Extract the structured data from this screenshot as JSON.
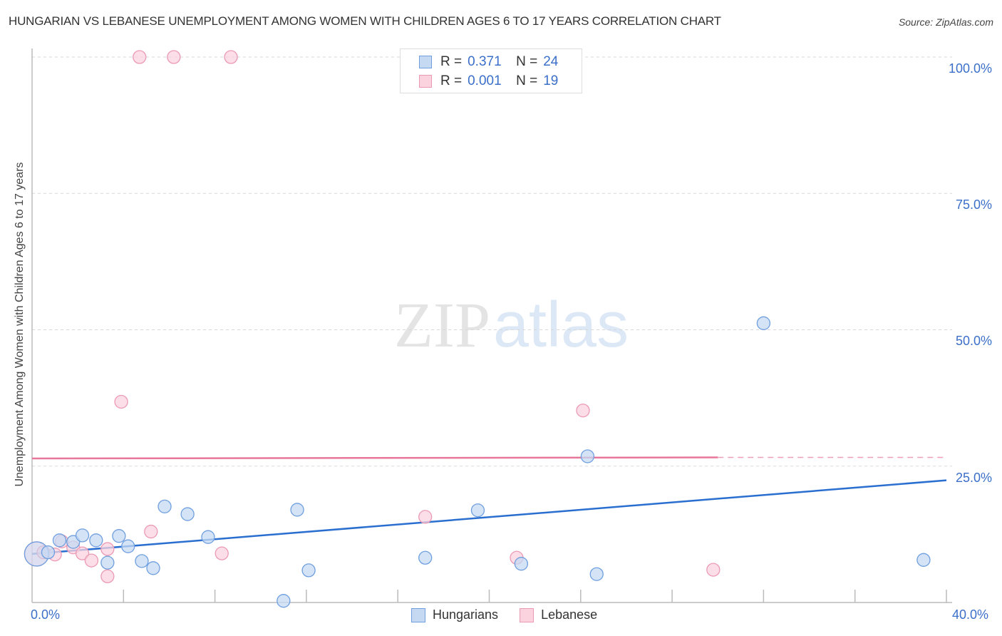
{
  "header": {
    "title": "HUNGARIAN VS LEBANESE UNEMPLOYMENT AMONG WOMEN WITH CHILDREN AGES 6 TO 17 YEARS CORRELATION CHART",
    "source": "Source: ZipAtlas.com"
  },
  "watermark": {
    "zip": "ZIP",
    "atlas": "atlas"
  },
  "legend": {
    "rows": [
      {
        "r_label": "R =",
        "r_value": "0.371",
        "n_label": "N =",
        "n_value": "24",
        "color": "#a9c8f0"
      },
      {
        "r_label": "R =",
        "r_value": "0.001",
        "n_label": "N =",
        "n_value": "19",
        "color": "#f6b8cb"
      }
    ]
  },
  "bottom_legend": [
    {
      "label": "Hungarians",
      "color": "#a9c8f0"
    },
    {
      "label": "Lebanese",
      "color": "#f6b8cb"
    }
  ],
  "axes": {
    "ylabel": "Unemployment Among Women with Children Ages 6 to 17 years",
    "y_ticks": [
      "100.0%",
      "75.0%",
      "50.0%",
      "25.0%"
    ],
    "x_ticks": [
      "0.0%",
      "40.0%"
    ]
  },
  "colors": {
    "blue_fill": "#c5d9f3",
    "blue_stroke": "#6f9fdf",
    "blue_line": "#2a6fd0",
    "pink_fill": "#fad3df",
    "pink_stroke": "#ec9ab3",
    "pink_line": "#e8789b",
    "tick_text": "#3b6fc9"
  },
  "chart_data": {
    "type": "scatter",
    "title": "HUNGARIAN VS LEBANESE UNEMPLOYMENT AMONG WOMEN WITH CHILDREN AGES 6 TO 17 YEARS CORRELATION CHART",
    "xlabel": "",
    "ylabel": "Unemployment Among Women with Children Ages 6 to 17 years",
    "xlim": [
      0,
      40
    ],
    "ylim": [
      0,
      100
    ],
    "x_tick_labels": [
      "0.0%",
      "40.0%"
    ],
    "y_tick_labels": [
      "25.0%",
      "50.0%",
      "75.0%",
      "100.0%"
    ],
    "grid": "horizontal dashed",
    "legend_position": "top center + bottom",
    "series": [
      {
        "name": "Hungarians",
        "R": 0.371,
        "N": 24,
        "points": [
          {
            "x": 0.2,
            "y": 8.9,
            "large": true
          },
          {
            "x": 0.7,
            "y": 9.2
          },
          {
            "x": 1.2,
            "y": 11.4
          },
          {
            "x": 1.8,
            "y": 11.1
          },
          {
            "x": 2.2,
            "y": 12.3
          },
          {
            "x": 2.8,
            "y": 11.4
          },
          {
            "x": 3.3,
            "y": 7.3
          },
          {
            "x": 3.8,
            "y": 12.2
          },
          {
            "x": 4.2,
            "y": 10.3
          },
          {
            "x": 4.8,
            "y": 7.6
          },
          {
            "x": 5.3,
            "y": 6.3
          },
          {
            "x": 5.8,
            "y": 17.6
          },
          {
            "x": 6.8,
            "y": 16.2
          },
          {
            "x": 7.7,
            "y": 12.0
          },
          {
            "x": 11.0,
            "y": 0.3
          },
          {
            "x": 11.6,
            "y": 17.0
          },
          {
            "x": 12.1,
            "y": 5.9
          },
          {
            "x": 17.2,
            "y": 8.2
          },
          {
            "x": 19.5,
            "y": 16.9
          },
          {
            "x": 21.4,
            "y": 7.1
          },
          {
            "x": 24.3,
            "y": 26.8
          },
          {
            "x": 24.7,
            "y": 5.2
          },
          {
            "x": 32.0,
            "y": 51.2
          },
          {
            "x": 39.0,
            "y": 7.8
          }
        ],
        "trendline": {
          "x": [
            0,
            40
          ],
          "y": [
            8.9,
            22.4
          ]
        }
      },
      {
        "name": "Lebanese",
        "R": 0.001,
        "N": 19,
        "points": [
          {
            "x": 0.2,
            "y": 8.9,
            "large": true
          },
          {
            "x": 0.5,
            "y": 9.2
          },
          {
            "x": 1.0,
            "y": 8.8
          },
          {
            "x": 1.3,
            "y": 11.2
          },
          {
            "x": 1.8,
            "y": 10.1
          },
          {
            "x": 2.2,
            "y": 9.0
          },
          {
            "x": 2.6,
            "y": 7.7
          },
          {
            "x": 3.3,
            "y": 9.8
          },
          {
            "x": 3.3,
            "y": 4.8
          },
          {
            "x": 3.9,
            "y": 36.8
          },
          {
            "x": 4.7,
            "y": 100.0
          },
          {
            "x": 5.2,
            "y": 13.0
          },
          {
            "x": 6.2,
            "y": 100.0
          },
          {
            "x": 8.3,
            "y": 9.0
          },
          {
            "x": 8.7,
            "y": 100.0
          },
          {
            "x": 17.2,
            "y": 15.7
          },
          {
            "x": 21.2,
            "y": 8.2
          },
          {
            "x": 24.1,
            "y": 35.2
          },
          {
            "x": 29.8,
            "y": 6.0
          }
        ],
        "trendline": {
          "x": [
            0,
            30
          ],
          "y": [
            26.4,
            26.6
          ],
          "dashed_extension_to": 40
        }
      }
    ]
  }
}
